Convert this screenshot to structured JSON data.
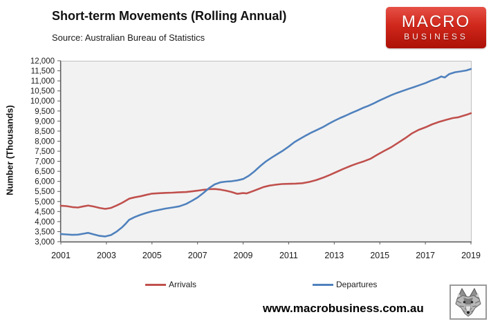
{
  "header": {
    "title": "Short-term Movements (Rolling Annual)",
    "source": "Source: Australian Bureau of Statistics",
    "logo": {
      "line1": "MACRO",
      "line2": "BUSINESS",
      "bg_color": "#c92215"
    }
  },
  "footer": {
    "url": "www.macrobusiness.com.au",
    "logo_icon": "wolf-head-sketch"
  },
  "chart_data": {
    "type": "line",
    "title": "Short-term Movements (Rolling Annual)",
    "xlabel": "",
    "ylabel": "Number (Thousands)",
    "xlim": [
      2001,
      2019
    ],
    "ylim": [
      3000,
      12000
    ],
    "x_ticks": [
      2001,
      2003,
      2005,
      2007,
      2009,
      2011,
      2013,
      2015,
      2017,
      2019
    ],
    "y_ticks": [
      3000,
      3500,
      4000,
      4500,
      5000,
      5500,
      6000,
      6500,
      7000,
      7500,
      8000,
      8500,
      9000,
      9500,
      10000,
      10500,
      11000,
      11500,
      12000
    ],
    "grid": false,
    "plot_bg": "#f2f2f2",
    "axis_color": "#595959",
    "border_color": "#bfbfbf",
    "legend_position": "bottom",
    "series": [
      {
        "name": "Arrivals",
        "color": "#C0504D",
        "points": [
          [
            2001.0,
            4790
          ],
          [
            2001.25,
            4770
          ],
          [
            2001.5,
            4720
          ],
          [
            2001.75,
            4700
          ],
          [
            2002.0,
            4760
          ],
          [
            2002.2,
            4800
          ],
          [
            2002.45,
            4750
          ],
          [
            2002.7,
            4680
          ],
          [
            2002.95,
            4630
          ],
          [
            2003.2,
            4680
          ],
          [
            2003.45,
            4800
          ],
          [
            2003.7,
            4940
          ],
          [
            2004.0,
            5140
          ],
          [
            2004.25,
            5210
          ],
          [
            2004.5,
            5260
          ],
          [
            2004.75,
            5330
          ],
          [
            2005.0,
            5390
          ],
          [
            2005.3,
            5410
          ],
          [
            2005.6,
            5430
          ],
          [
            2005.9,
            5440
          ],
          [
            2006.2,
            5460
          ],
          [
            2006.5,
            5470
          ],
          [
            2006.8,
            5510
          ],
          [
            2007.0,
            5540
          ],
          [
            2007.25,
            5580
          ],
          [
            2007.5,
            5610
          ],
          [
            2007.75,
            5620
          ],
          [
            2008.0,
            5590
          ],
          [
            2008.25,
            5540
          ],
          [
            2008.5,
            5470
          ],
          [
            2008.75,
            5380
          ],
          [
            2009.0,
            5420
          ],
          [
            2009.15,
            5400
          ],
          [
            2009.4,
            5500
          ],
          [
            2009.65,
            5610
          ],
          [
            2009.9,
            5720
          ],
          [
            2010.15,
            5790
          ],
          [
            2010.4,
            5830
          ],
          [
            2010.7,
            5870
          ],
          [
            2011.0,
            5880
          ],
          [
            2011.3,
            5890
          ],
          [
            2011.6,
            5910
          ],
          [
            2011.9,
            5970
          ],
          [
            2012.2,
            6060
          ],
          [
            2012.5,
            6180
          ],
          [
            2012.8,
            6320
          ],
          [
            2013.1,
            6470
          ],
          [
            2013.4,
            6620
          ],
          [
            2013.7,
            6760
          ],
          [
            2014.0,
            6890
          ],
          [
            2014.3,
            7000
          ],
          [
            2014.6,
            7130
          ],
          [
            2014.9,
            7330
          ],
          [
            2015.2,
            7520
          ],
          [
            2015.5,
            7700
          ],
          [
            2015.8,
            7920
          ],
          [
            2016.1,
            8140
          ],
          [
            2016.4,
            8380
          ],
          [
            2016.7,
            8560
          ],
          [
            2017.0,
            8690
          ],
          [
            2017.3,
            8840
          ],
          [
            2017.6,
            8960
          ],
          [
            2017.9,
            9060
          ],
          [
            2018.2,
            9150
          ],
          [
            2018.45,
            9190
          ],
          [
            2018.7,
            9280
          ],
          [
            2018.85,
            9330
          ],
          [
            2019.0,
            9390
          ]
        ]
      },
      {
        "name": "Departures",
        "color": "#4F81BD",
        "points": [
          [
            2001.0,
            3380
          ],
          [
            2001.25,
            3360
          ],
          [
            2001.5,
            3340
          ],
          [
            2001.75,
            3350
          ],
          [
            2002.0,
            3400
          ],
          [
            2002.2,
            3440
          ],
          [
            2002.45,
            3360
          ],
          [
            2002.7,
            3290
          ],
          [
            2002.95,
            3260
          ],
          [
            2003.2,
            3330
          ],
          [
            2003.45,
            3500
          ],
          [
            2003.7,
            3730
          ],
          [
            2003.85,
            3900
          ],
          [
            2004.0,
            4090
          ],
          [
            2004.25,
            4230
          ],
          [
            2004.5,
            4340
          ],
          [
            2004.75,
            4430
          ],
          [
            2005.0,
            4510
          ],
          [
            2005.3,
            4580
          ],
          [
            2005.6,
            4650
          ],
          [
            2005.9,
            4700
          ],
          [
            2006.2,
            4760
          ],
          [
            2006.5,
            4880
          ],
          [
            2006.75,
            5030
          ],
          [
            2007.0,
            5200
          ],
          [
            2007.25,
            5420
          ],
          [
            2007.5,
            5660
          ],
          [
            2007.75,
            5850
          ],
          [
            2008.0,
            5950
          ],
          [
            2008.25,
            5990
          ],
          [
            2008.5,
            6010
          ],
          [
            2008.75,
            6050
          ],
          [
            2009.0,
            6120
          ],
          [
            2009.25,
            6280
          ],
          [
            2009.5,
            6500
          ],
          [
            2009.75,
            6760
          ],
          [
            2010.0,
            6990
          ],
          [
            2010.25,
            7180
          ],
          [
            2010.5,
            7360
          ],
          [
            2010.75,
            7530
          ],
          [
            2011.0,
            7730
          ],
          [
            2011.25,
            7950
          ],
          [
            2011.5,
            8120
          ],
          [
            2011.75,
            8280
          ],
          [
            2012.0,
            8430
          ],
          [
            2012.25,
            8560
          ],
          [
            2012.5,
            8700
          ],
          [
            2012.75,
            8860
          ],
          [
            2013.0,
            9010
          ],
          [
            2013.25,
            9150
          ],
          [
            2013.5,
            9270
          ],
          [
            2013.75,
            9400
          ],
          [
            2014.0,
            9520
          ],
          [
            2014.25,
            9650
          ],
          [
            2014.5,
            9760
          ],
          [
            2014.75,
            9890
          ],
          [
            2015.0,
            10030
          ],
          [
            2015.25,
            10160
          ],
          [
            2015.5,
            10290
          ],
          [
            2015.75,
            10400
          ],
          [
            2016.0,
            10500
          ],
          [
            2016.25,
            10600
          ],
          [
            2016.5,
            10690
          ],
          [
            2016.75,
            10790
          ],
          [
            2017.0,
            10890
          ],
          [
            2017.25,
            11010
          ],
          [
            2017.5,
            11110
          ],
          [
            2017.7,
            11220
          ],
          [
            2017.85,
            11170
          ],
          [
            2018.05,
            11340
          ],
          [
            2018.3,
            11430
          ],
          [
            2018.55,
            11470
          ],
          [
            2018.8,
            11520
          ],
          [
            2019.0,
            11590
          ]
        ]
      }
    ]
  }
}
